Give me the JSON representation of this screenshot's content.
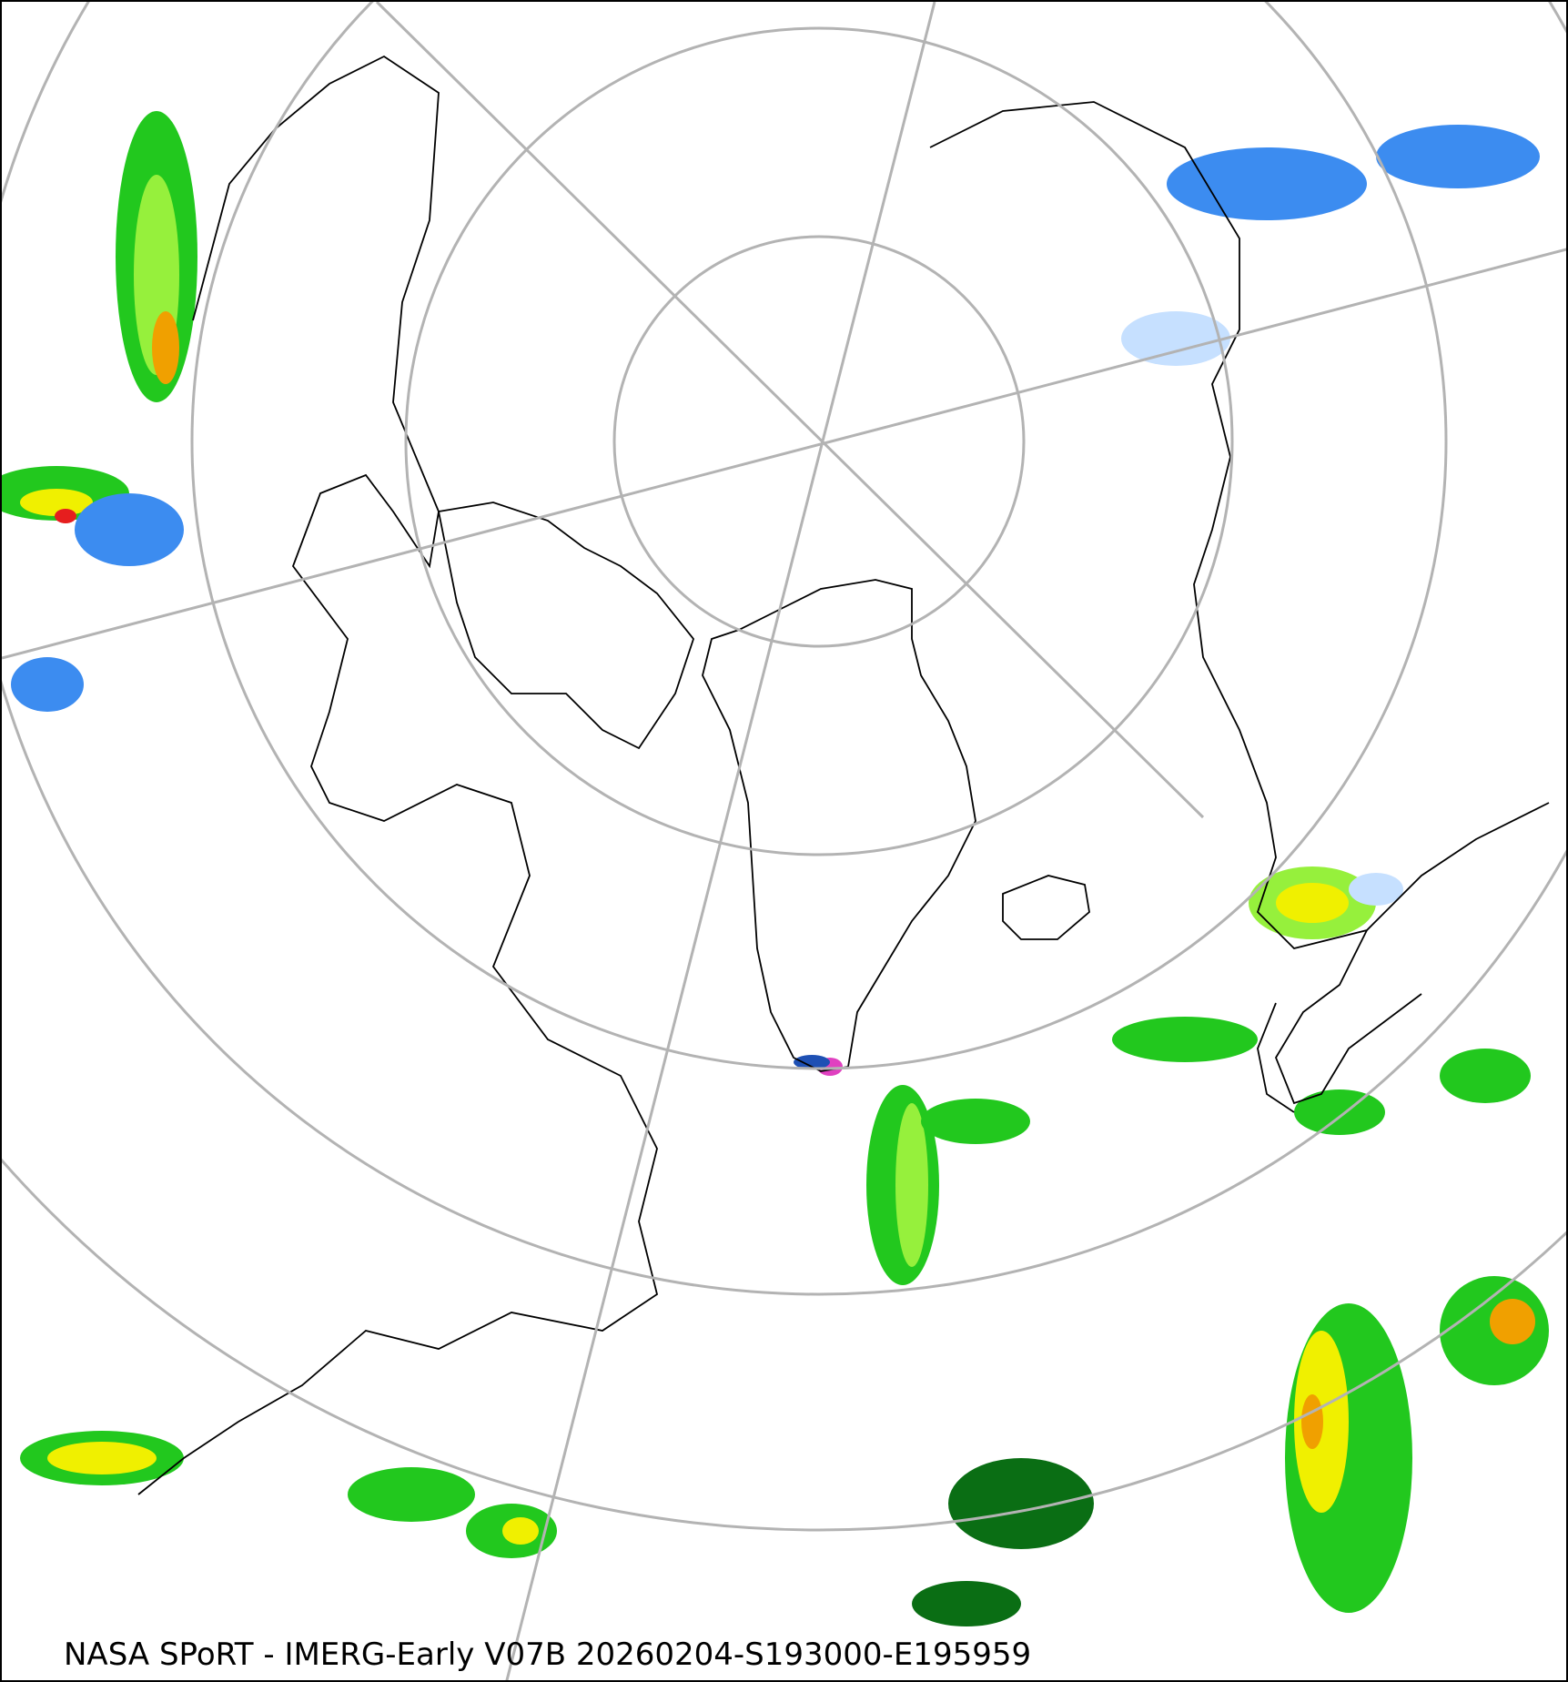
{
  "map": {
    "projection": "north-polar-stereographic",
    "caption": "NASA SPoRT - IMERG-Early V07B 20260204-S193000-E195959",
    "colors": {
      "graticule": "#b3b3b3",
      "coastline": "#000000",
      "precip_light_blue": "#c6e0ff",
      "precip_blue": "#3c8cf0",
      "precip_dark_blue": "#1e50b4",
      "precip_dark_green": "#0a6e14",
      "precip_green": "#22c81e",
      "precip_light_green": "#96f03c",
      "precip_yellow": "#f0f000",
      "precip_orange": "#f0a000",
      "precip_red": "#e61e1e",
      "precip_magenta": "#e040c0"
    }
  }
}
